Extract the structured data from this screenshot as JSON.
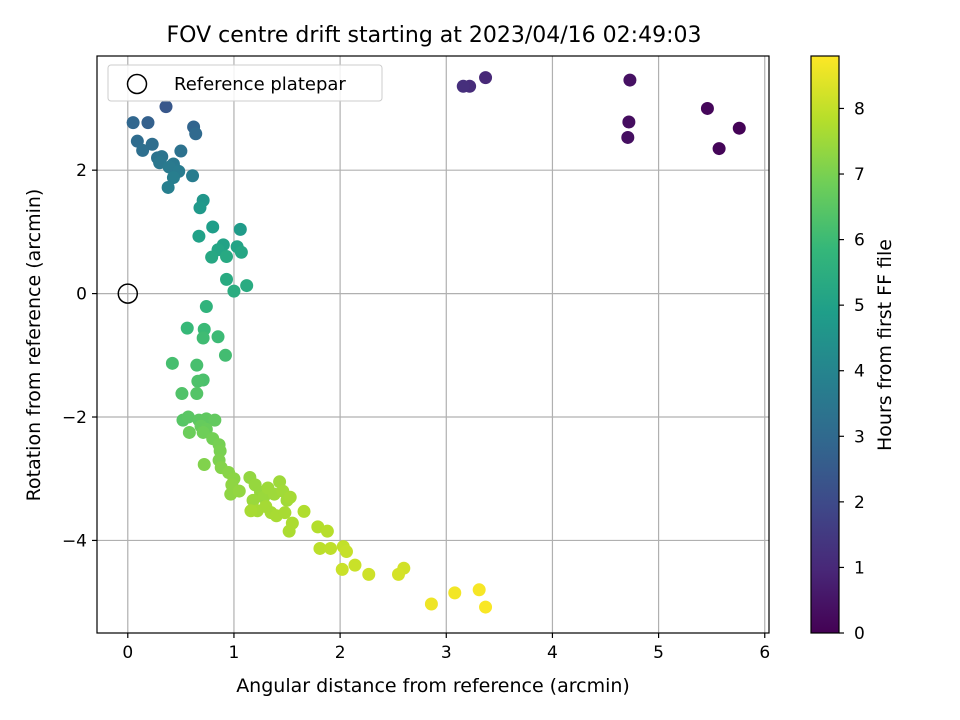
{
  "chart_data": {
    "type": "scatter",
    "title": "FOV centre drift starting at 2023/04/16 02:49:03",
    "xlabel": "Angular distance from reference (arcmin)",
    "ylabel": "Rotation from reference (arcmin)",
    "xlim": [
      -0.29,
      6.04
    ],
    "ylim": [
      -5.5,
      3.85
    ],
    "xticks": [
      "0",
      "1",
      "2",
      "3",
      "4",
      "5",
      "6"
    ],
    "xtick_values": [
      0,
      1,
      2,
      3,
      4,
      5,
      6
    ],
    "yticks": [
      "−4",
      "−2",
      "0",
      "2"
    ],
    "ytick_values": [
      -4,
      -2,
      0,
      2
    ],
    "grid": true,
    "legend": {
      "placement": "top-left",
      "entries": [
        {
          "label": "Reference platepar",
          "marker": "open-circle"
        }
      ]
    },
    "reference_point": {
      "x": 0,
      "y": 0
    },
    "colorbar": {
      "label": "Hours from first FF file",
      "colormap": "viridis",
      "range": [
        0,
        8.8
      ],
      "ticks": [
        "0",
        "1",
        "2",
        "3",
        "4",
        "5",
        "6",
        "7",
        "8"
      ],
      "tick_values": [
        0,
        1,
        2,
        3,
        4,
        5,
        6,
        7,
        8
      ],
      "stops": [
        "#440154",
        "#482878",
        "#3e4989",
        "#31688e",
        "#26828e",
        "#1f9e89",
        "#35b779",
        "#6ece58",
        "#b5de2b",
        "#fde725"
      ]
    },
    "series": [
      {
        "points": [
          [
            5.76,
            2.68,
            0.05
          ],
          [
            5.57,
            2.35,
            0.1
          ],
          [
            5.46,
            3.0,
            0.15
          ],
          [
            4.72,
            2.78,
            0.3
          ],
          [
            4.71,
            2.53,
            0.35
          ],
          [
            4.73,
            3.46,
            0.4
          ],
          [
            3.37,
            3.5,
            1.0
          ],
          [
            3.22,
            3.36,
            1.1
          ],
          [
            3.16,
            3.36,
            1.2
          ],
          [
            0.36,
            3.03,
            2.4
          ],
          [
            0.19,
            2.77,
            2.7
          ],
          [
            0.05,
            2.77,
            2.9
          ],
          [
            0.62,
            2.7,
            2.85
          ],
          [
            0.64,
            2.59,
            3.0
          ],
          [
            0.09,
            2.47,
            3.1
          ],
          [
            0.23,
            2.42,
            3.15
          ],
          [
            0.14,
            2.32,
            3.2
          ],
          [
            0.5,
            2.31,
            3.3
          ],
          [
            0.28,
            2.2,
            3.35
          ],
          [
            0.32,
            2.22,
            3.4
          ],
          [
            0.3,
            2.12,
            3.5
          ],
          [
            0.43,
            2.1,
            3.55
          ],
          [
            0.39,
            2.05,
            3.6
          ],
          [
            0.48,
            1.98,
            3.65
          ],
          [
            0.61,
            1.91,
            3.7
          ],
          [
            0.43,
            1.88,
            3.75
          ],
          [
            0.38,
            1.72,
            3.8
          ],
          [
            0.71,
            1.51,
            4.6
          ],
          [
            0.68,
            1.39,
            4.7
          ],
          [
            1.06,
            1.04,
            4.8
          ],
          [
            0.8,
            1.08,
            4.9
          ],
          [
            0.67,
            0.93,
            5.0
          ],
          [
            0.9,
            0.79,
            5.05
          ],
          [
            1.03,
            0.76,
            5.1
          ],
          [
            0.85,
            0.71,
            5.15
          ],
          [
            1.07,
            0.67,
            5.2
          ],
          [
            0.79,
            0.59,
            5.25
          ],
          [
            0.93,
            0.6,
            5.3
          ],
          [
            0.93,
            0.23,
            5.35
          ],
          [
            1.12,
            0.13,
            5.4
          ],
          [
            1.0,
            0.04,
            5.45
          ],
          [
            0.74,
            -0.21,
            5.7
          ],
          [
            0.56,
            -0.56,
            5.9
          ],
          [
            0.72,
            -0.58,
            5.95
          ],
          [
            0.85,
            -0.7,
            6.0
          ],
          [
            0.71,
            -0.72,
            6.05
          ],
          [
            0.92,
            -1.0,
            6.1
          ],
          [
            0.42,
            -1.13,
            6.15
          ],
          [
            0.65,
            -1.16,
            6.2
          ],
          [
            0.71,
            -1.4,
            6.25
          ],
          [
            0.66,
            -1.42,
            6.3
          ],
          [
            0.51,
            -1.62,
            6.35
          ],
          [
            0.65,
            -1.62,
            6.4
          ],
          [
            0.52,
            -2.05,
            6.45
          ],
          [
            0.57,
            -2.0,
            6.5
          ],
          [
            0.67,
            -2.05,
            6.55
          ],
          [
            0.74,
            -2.03,
            6.6
          ],
          [
            0.82,
            -2.05,
            6.65
          ],
          [
            0.69,
            -2.15,
            6.7
          ],
          [
            0.74,
            -2.2,
            6.75
          ],
          [
            0.58,
            -2.25,
            6.8
          ],
          [
            0.71,
            -2.25,
            6.85
          ],
          [
            0.8,
            -2.35,
            6.9
          ],
          [
            0.86,
            -2.45,
            6.95
          ],
          [
            0.87,
            -2.55,
            7.0
          ],
          [
            0.86,
            -2.7,
            7.05
          ],
          [
            0.72,
            -2.77,
            7.1
          ],
          [
            0.88,
            -2.82,
            7.15
          ],
          [
            0.95,
            -2.9,
            7.2
          ],
          [
            1.0,
            -3.0,
            7.25
          ],
          [
            0.98,
            -3.1,
            7.3
          ],
          [
            0.97,
            -3.25,
            7.3
          ],
          [
            1.05,
            -3.2,
            7.35
          ],
          [
            1.15,
            -2.98,
            7.35
          ],
          [
            1.2,
            -3.1,
            7.4
          ],
          [
            1.25,
            -3.22,
            7.4
          ],
          [
            1.18,
            -3.35,
            7.45
          ],
          [
            1.28,
            -3.3,
            7.45
          ],
          [
            1.32,
            -3.15,
            7.5
          ],
          [
            1.38,
            -3.25,
            7.5
          ],
          [
            1.43,
            -3.05,
            7.5
          ],
          [
            1.46,
            -3.2,
            7.55
          ],
          [
            1.5,
            -3.35,
            7.55
          ],
          [
            1.53,
            -3.3,
            7.6
          ],
          [
            1.22,
            -3.52,
            7.6
          ],
          [
            1.3,
            -3.45,
            7.6
          ],
          [
            1.35,
            -3.55,
            7.6
          ],
          [
            1.4,
            -3.6,
            7.65
          ],
          [
            1.48,
            -3.55,
            7.65
          ],
          [
            1.16,
            -3.52,
            7.65
          ],
          [
            1.55,
            -3.72,
            7.7
          ],
          [
            1.52,
            -3.85,
            7.7
          ],
          [
            1.66,
            -3.53,
            7.75
          ],
          [
            1.79,
            -3.78,
            7.8
          ],
          [
            1.88,
            -3.85,
            7.85
          ],
          [
            1.81,
            -4.13,
            7.9
          ],
          [
            1.91,
            -4.13,
            7.95
          ],
          [
            2.03,
            -4.1,
            8.0
          ],
          [
            2.06,
            -4.18,
            8.05
          ],
          [
            2.14,
            -4.4,
            8.1
          ],
          [
            2.02,
            -4.47,
            8.1
          ],
          [
            2.27,
            -4.55,
            8.15
          ],
          [
            2.6,
            -4.45,
            8.2
          ],
          [
            2.55,
            -4.55,
            8.25
          ],
          [
            2.86,
            -5.03,
            8.6
          ],
          [
            3.08,
            -4.85,
            8.65
          ],
          [
            3.31,
            -4.8,
            8.7
          ],
          [
            3.37,
            -5.08,
            8.75
          ]
        ]
      }
    ]
  }
}
